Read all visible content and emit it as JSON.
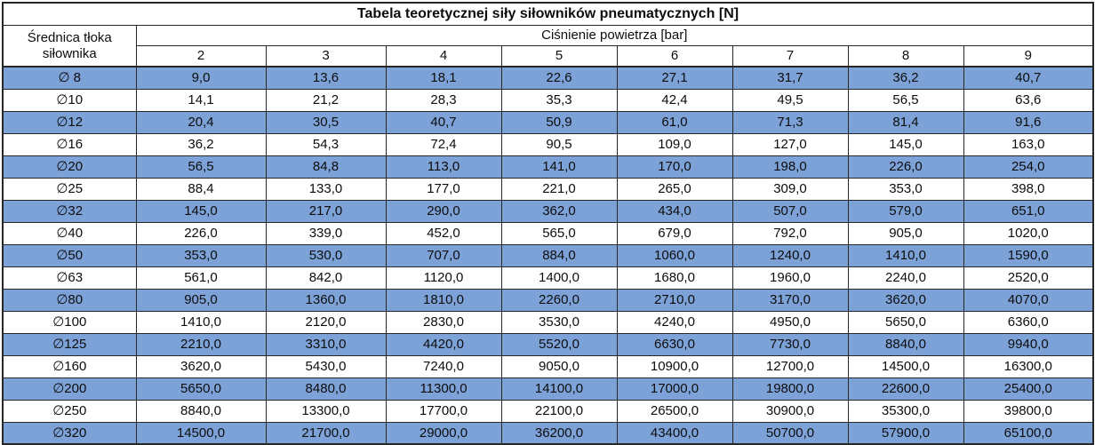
{
  "colors": {
    "row_highlight": "#7CA2D8",
    "border": "#262626",
    "text": "#0d0d0d",
    "background": "#FFFFFF"
  },
  "chart_data": {
    "type": "table",
    "title": "Tabela teoretycznej siły siłowników pneumatycznych [N]",
    "row_header": "Średnica tłoka siłownika",
    "column_group_header": "Ciśnienie powietrza [bar]",
    "column_headers": [
      "2",
      "3",
      "4",
      "5",
      "6",
      "7",
      "8",
      "9"
    ],
    "number_format": "one decimal place, comma as decimal separator",
    "layout": {
      "grid": true,
      "striped": "odd data rows highlighted blue, even rows white",
      "title_position": "top, spanning all columns, bold"
    },
    "rows": [
      {
        "label": "∅ 8",
        "values": [
          9.0,
          13.6,
          18.1,
          22.6,
          27.1,
          31.7,
          36.2,
          40.7
        ]
      },
      {
        "label": "∅10",
        "values": [
          14.1,
          21.2,
          28.3,
          35.3,
          42.4,
          49.5,
          56.5,
          63.6
        ]
      },
      {
        "label": "∅12",
        "values": [
          20.4,
          30.5,
          40.7,
          50.9,
          61.0,
          71.3,
          81.4,
          91.6
        ]
      },
      {
        "label": "∅16",
        "values": [
          36.2,
          54.3,
          72.4,
          90.5,
          109.0,
          127.0,
          145.0,
          163.0
        ]
      },
      {
        "label": "∅20",
        "values": [
          56.5,
          84.8,
          113.0,
          141.0,
          170.0,
          198.0,
          226.0,
          254.0
        ]
      },
      {
        "label": "∅25",
        "values": [
          88.4,
          133.0,
          177.0,
          221.0,
          265.0,
          309.0,
          353.0,
          398.0
        ]
      },
      {
        "label": "∅32",
        "values": [
          145.0,
          217.0,
          290.0,
          362.0,
          434.0,
          507.0,
          579.0,
          651.0
        ]
      },
      {
        "label": "∅40",
        "values": [
          226.0,
          339.0,
          452.0,
          565.0,
          679.0,
          792.0,
          905.0,
          1020.0
        ]
      },
      {
        "label": "∅50",
        "values": [
          353.0,
          530.0,
          707.0,
          884.0,
          1060.0,
          1240.0,
          1410.0,
          1590.0
        ]
      },
      {
        "label": "∅63",
        "values": [
          561.0,
          842.0,
          1120.0,
          1400.0,
          1680.0,
          1960.0,
          2240.0,
          2520.0
        ]
      },
      {
        "label": "∅80",
        "values": [
          905.0,
          1360.0,
          1810.0,
          2260.0,
          2710.0,
          3170.0,
          3620.0,
          4070.0
        ]
      },
      {
        "label": "∅100",
        "values": [
          1410.0,
          2120.0,
          2830.0,
          3530.0,
          4240.0,
          4950.0,
          5650.0,
          6360.0
        ]
      },
      {
        "label": "∅125",
        "values": [
          2210.0,
          3310.0,
          4420.0,
          5520.0,
          6630.0,
          7730.0,
          8840.0,
          9940.0
        ]
      },
      {
        "label": "∅160",
        "values": [
          3620.0,
          5430.0,
          7240.0,
          9050.0,
          10900.0,
          12700.0,
          14500.0,
          16300.0
        ]
      },
      {
        "label": "∅200",
        "values": [
          5650.0,
          8480.0,
          11300.0,
          14100.0,
          17000.0,
          19800.0,
          22600.0,
          25400.0
        ]
      },
      {
        "label": "∅250",
        "values": [
          8840.0,
          13300.0,
          17700.0,
          22100.0,
          26500.0,
          30900.0,
          35300.0,
          39800.0
        ]
      },
      {
        "label": "∅320",
        "values": [
          14500.0,
          21700.0,
          29000.0,
          36200.0,
          43400.0,
          50700.0,
          57900.0,
          65100.0
        ]
      }
    ]
  }
}
